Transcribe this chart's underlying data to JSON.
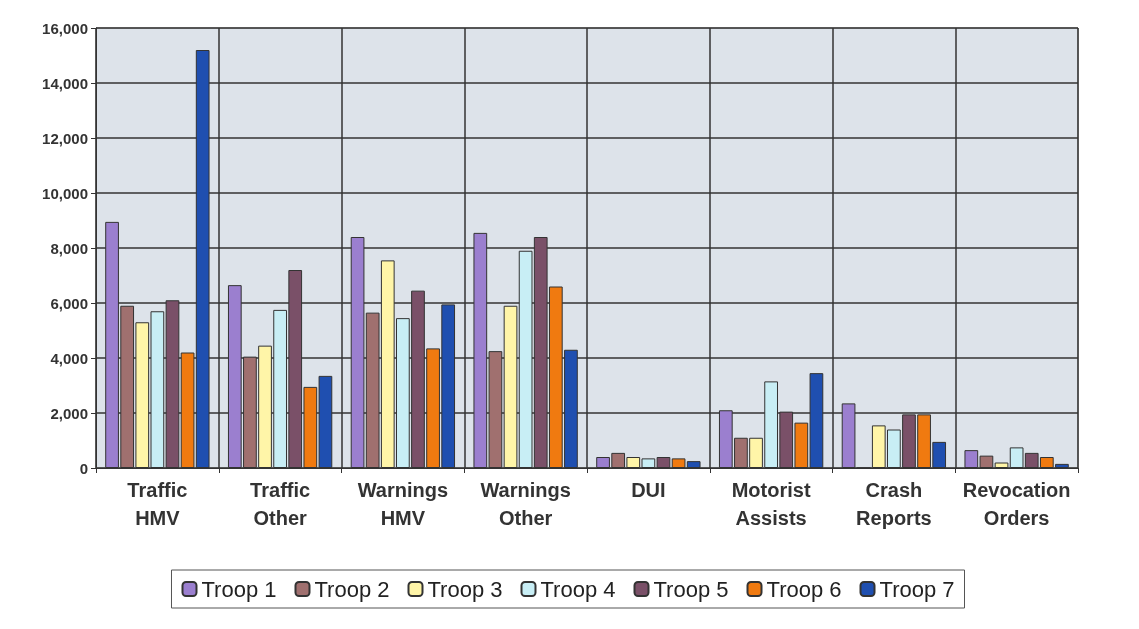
{
  "chart_data": {
    "type": "bar",
    "categories": [
      "Traffic HMV",
      "Traffic Other",
      "Warnings HMV",
      "Warnings Other",
      "DUI",
      "Motorist Assists",
      "Crash Reports",
      "Revocation Orders"
    ],
    "series": [
      {
        "name": "Troop 1",
        "color": "#9b7fcf",
        "values": [
          8950,
          6650,
          8400,
          8550,
          400,
          2100,
          2350,
          650
        ]
      },
      {
        "name": "Troop 2",
        "color": "#a0706f",
        "values": [
          5900,
          4050,
          5650,
          4250,
          550,
          1100,
          0,
          450
        ]
      },
      {
        "name": "Troop 3",
        "color": "#fff5a8",
        "values": [
          5300,
          4450,
          7550,
          5900,
          400,
          1100,
          1550,
          200
        ]
      },
      {
        "name": "Troop 4",
        "color": "#c8eef5",
        "values": [
          5700,
          5750,
          5450,
          7900,
          350,
          3150,
          1400,
          750
        ]
      },
      {
        "name": "Troop 5",
        "color": "#7a5068",
        "values": [
          6100,
          7200,
          6450,
          8400,
          400,
          2050,
          1950,
          550
        ]
      },
      {
        "name": "Troop 6",
        "color": "#f07a10",
        "values": [
          4200,
          2950,
          4350,
          6600,
          350,
          1650,
          1950,
          400
        ]
      },
      {
        "name": "Troop 7",
        "color": "#1f4fb0",
        "values": [
          15200,
          3350,
          5950,
          4300,
          250,
          3450,
          950,
          150
        ]
      }
    ],
    "ylim": [
      0,
      16000
    ],
    "yticks": [
      0,
      {
        "value": 2000,
        "label": "2,000"
      },
      {
        "value": 4000,
        "label": "4,000"
      },
      {
        "value": 6000,
        "label": "6,000"
      },
      {
        "value": 8000,
        "label": "8,000"
      },
      {
        "value": 10000,
        "label": "10,000"
      },
      {
        "value": 12000,
        "label": "12,000"
      },
      {
        "value": 14000,
        "label": "14,000"
      },
      {
        "value": 16000,
        "label": "16,000"
      }
    ],
    "grid": true,
    "legend": "bottom"
  }
}
